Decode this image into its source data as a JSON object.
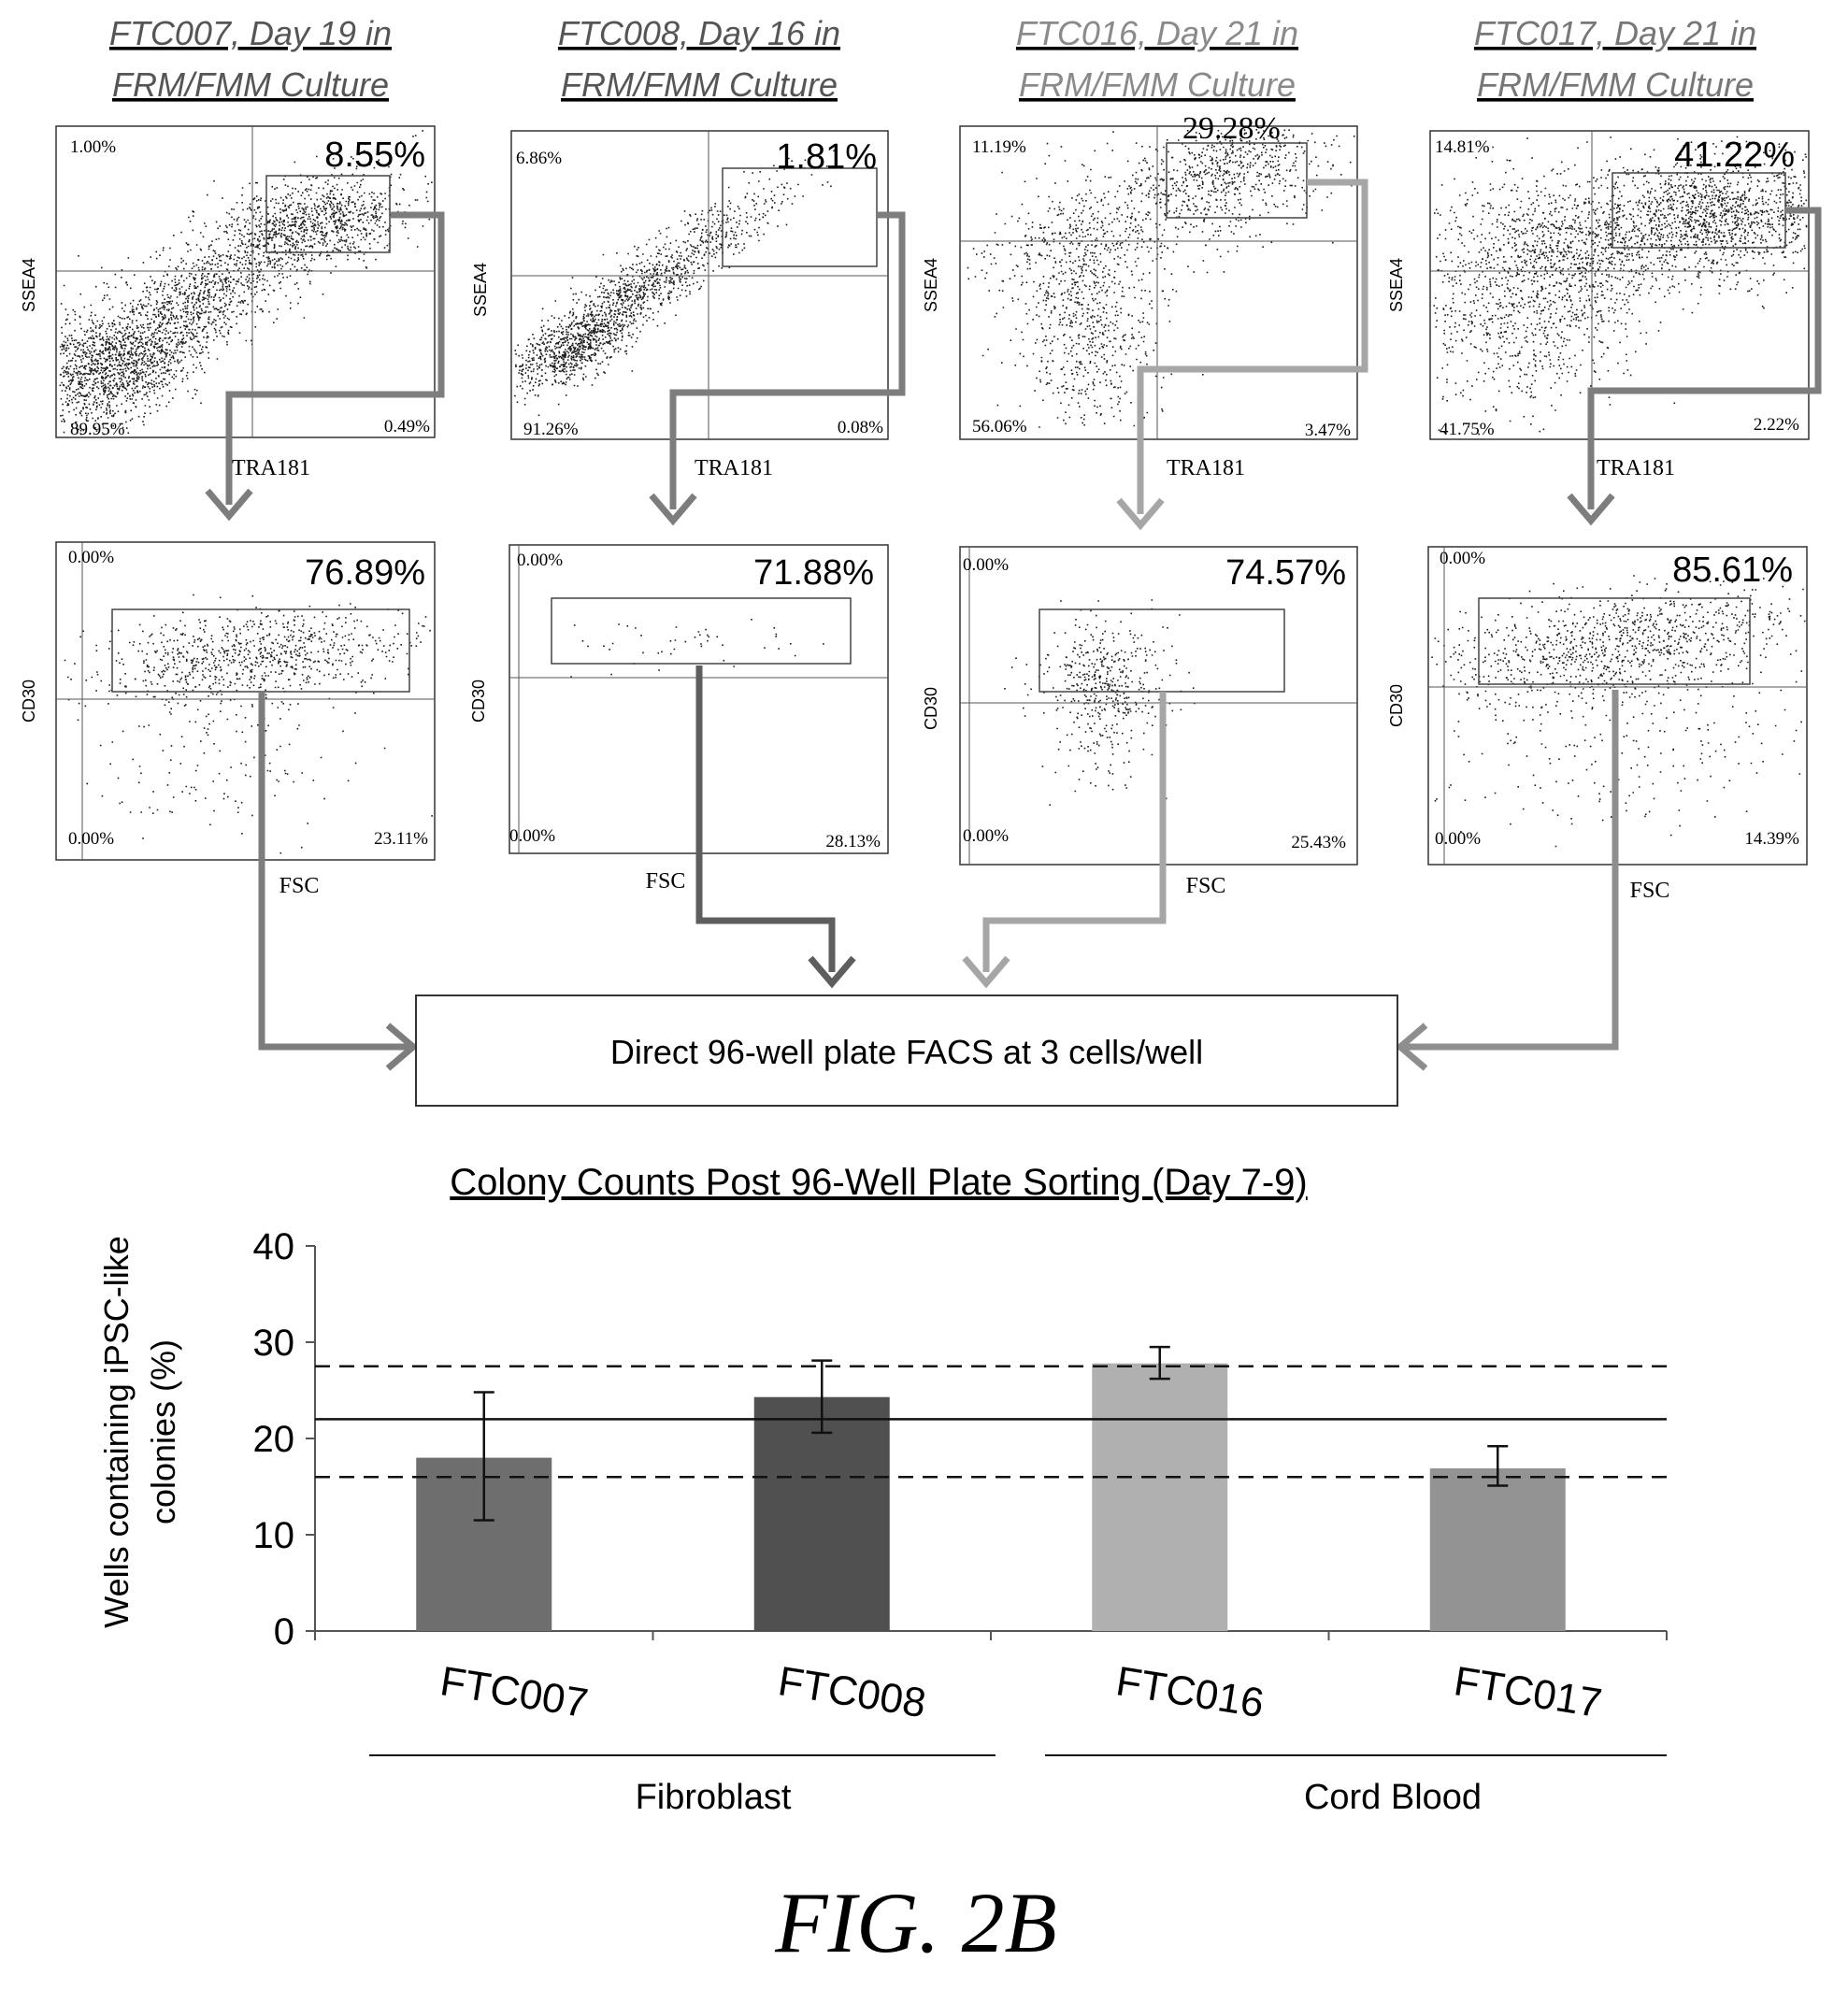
{
  "figure_label": "FIG. 2B",
  "flow_panels": [
    {
      "title_line1": "FTC007, Day 19 in",
      "title_line2": "FRM/FMM Culture",
      "title_color": "#555555",
      "top": {
        "x_label": "TRA181",
        "y_label": "SSEA4",
        "q_ul": "1.00%",
        "q_ll": "89.95%",
        "q_lr": "0.49%",
        "gate": "8.55%"
      },
      "bottom": {
        "x_label": "FSC",
        "y_label": "CD30",
        "q_ul": "0.00%",
        "q_ll": "0.00%",
        "q_lr": "23.11%",
        "gate": "76.89%"
      }
    },
    {
      "title_line1": "FTC008, Day 16 in",
      "title_line2": "FRM/FMM Culture",
      "title_color": "#555555",
      "top": {
        "x_label": "TRA181",
        "y_label": "SSEA4",
        "q_ul": "6.86%",
        "q_ll": "91.26%",
        "q_lr": "0.08%",
        "gate": "1.81%"
      },
      "bottom": {
        "x_label": "FSC",
        "y_label": "CD30",
        "q_ul": "0.00%",
        "q_ll": "0.00%",
        "q_lr": "28.13%",
        "gate": "71.88%"
      }
    },
    {
      "title_line1": "FTC016, Day 21 in",
      "title_line2": "FRM/FMM Culture",
      "title_color": "#8a8a8a",
      "top": {
        "x_label": "TRA181",
        "y_label": "SSEA4",
        "q_ul": "11.19%",
        "q_ll": "56.06%",
        "q_lr": "3.47%",
        "gate": "29.28%"
      },
      "bottom": {
        "x_label": "FSC",
        "y_label": "CD30",
        "q_ul": "0.00%",
        "q_ll": "0.00%",
        "q_lr": "25.43%",
        "gate": "74.57%"
      }
    },
    {
      "title_line1": "FTC017, Day 21 in",
      "title_line2": "FRM/FMM Culture",
      "title_color": "#777777",
      "top": {
        "x_label": "TRA181",
        "y_label": "SSEA4",
        "q_ul": "14.81%",
        "q_ll": "41.75%",
        "q_lr": "2.22%",
        "gate": "41.22%"
      },
      "bottom": {
        "x_label": "FSC",
        "y_label": "CD30",
        "q_ul": "0.00%",
        "q_ll": "0.00%",
        "q_lr": "14.39%",
        "gate": "85.61%"
      }
    }
  ],
  "facs_box_text": "Direct 96-well plate FACS at 3 cells/well",
  "colors": {
    "flow_arrow": "#7d7d7d",
    "flow_arrow_light": "#a6a6a6",
    "dots": "#1a1a1a"
  },
  "chart_data": {
    "type": "bar",
    "title": "Colony Counts Post 96-Well Plate Sorting  (Day 7-9)",
    "ylabel_line1": "Wells containing iPSC-like",
    "ylabel_line2": "colonies (%)",
    "ylim": [
      0,
      40
    ],
    "yticks": [
      "0",
      "10",
      "20",
      "30",
      "40"
    ],
    "categories": [
      "FTC007",
      "FTC008",
      "FTC016",
      "FTC017"
    ],
    "values": [
      18,
      24.3,
      27.8,
      16.9
    ],
    "error_low": [
      11.5,
      20.6,
      26.2,
      15.1
    ],
    "error_high": [
      24.8,
      28.1,
      29.5,
      19.2
    ],
    "bar_colors": [
      "#6e6e6e",
      "#505050",
      "#b0b0b0",
      "#939393"
    ],
    "mean_line": 22,
    "dashed_lines": [
      27.5,
      16
    ],
    "groups": [
      {
        "label": "Fibroblast",
        "categories": [
          "FTC007",
          "FTC008"
        ]
      },
      {
        "label": "Cord Blood",
        "categories": [
          "FTC016",
          "FTC017"
        ]
      }
    ],
    "grid": false,
    "legend": "none"
  }
}
